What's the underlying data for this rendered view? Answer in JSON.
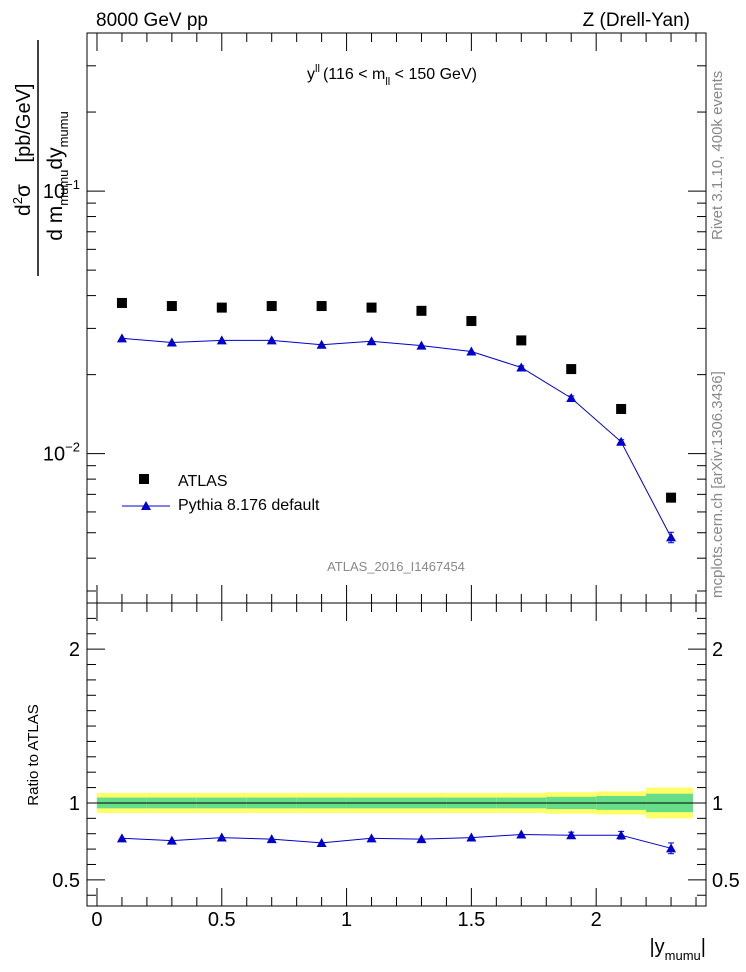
{
  "header": {
    "left_title": "8000 GeV pp",
    "right_title": "Z (Drell-Yan)"
  },
  "side_labels": {
    "rivet": "Rivet 3.1.10,  400k events",
    "mcplots": "mcplots.cern.ch [arXiv:1306.3436]"
  },
  "analysis_id": "ATLAS_2016_I1467454",
  "chart_data": [
    {
      "type": "scatter",
      "panel": "main",
      "title": "y^ll (116 < m_ll < 150 GeV)",
      "title_parts": {
        "y": "y",
        "y_sup": "ll",
        "pre": "(116 < m",
        "m_sub": "ll",
        "post": " < 150 GeV)"
      },
      "ylabel": "d²σ / d m_mumu dy_mumu [pb/GeV]",
      "ylabel_parts": {
        "num": "d",
        "num_sup": "2",
        "num_tail": "σ",
        "den_a": "d m",
        "den_a_sub": "mumu",
        "den_b": "dy",
        "den_b_sub": "mumu",
        "unit": "[pb/GeV]"
      },
      "yscale": "log",
      "ylim": [
        0.0027,
        0.4
      ],
      "xlim": [
        -0.04,
        2.44
      ],
      "y_tick_labels": [
        {
          "value": 0.1,
          "base": "10",
          "exp": "−1"
        },
        {
          "value": 0.01,
          "base": "10",
          "exp": "−2"
        }
      ],
      "legend_position": "lower-left",
      "series": [
        {
          "name": "ATLAS",
          "marker": "square",
          "color": "#000000",
          "x": [
            0.1,
            0.3,
            0.5,
            0.7,
            0.9,
            1.1,
            1.3,
            1.5,
            1.7,
            1.9,
            2.1,
            2.3
          ],
          "y": [
            0.0375,
            0.0365,
            0.036,
            0.0365,
            0.0365,
            0.036,
            0.035,
            0.032,
            0.027,
            0.021,
            0.0148,
            0.0068
          ]
        },
        {
          "name": "Pythia 8.176 default",
          "marker": "triangle",
          "color": "#0000cc",
          "x": [
            0.1,
            0.3,
            0.5,
            0.7,
            0.9,
            1.1,
            1.3,
            1.5,
            1.7,
            1.9,
            2.1,
            2.3
          ],
          "y": [
            0.0275,
            0.0265,
            0.027,
            0.027,
            0.026,
            0.0268,
            0.0258,
            0.0245,
            0.0213,
            0.0163,
            0.0111,
            0.0048
          ],
          "err": [
            0.0003,
            0.0003,
            0.0003,
            0.0003,
            0.0003,
            0.0003,
            0.0003,
            0.0003,
            0.0003,
            0.0003,
            0.0002,
            0.00022
          ]
        }
      ]
    },
    {
      "type": "line",
      "panel": "ratio",
      "ylabel": "Ratio to ATLAS",
      "xlabel": "|y_mumu|",
      "xlabel_parts": {
        "main": "|y",
        "sub": "mumu",
        "tail": "|"
      },
      "ylim": [
        0.33,
        2.3
      ],
      "xlim": [
        -0.04,
        2.44
      ],
      "x_ticks": [
        0,
        0.5,
        1,
        1.5,
        2
      ],
      "x_tick_labels": [
        "0",
        "0.5",
        "1",
        "1.5",
        "2"
      ],
      "y_ticks": [
        0.5,
        1,
        2
      ],
      "y_tick_labels": [
        "0.5",
        "1",
        "2"
      ],
      "band_colors": {
        "outer": "#ffff66",
        "inner": "#66dd88"
      },
      "bands": {
        "edges": [
          0.0,
          0.2,
          0.4,
          0.6,
          0.8,
          1.0,
          1.2,
          1.4,
          1.6,
          1.8,
          2.0,
          2.2,
          2.4
        ],
        "outer": [
          0.065,
          0.065,
          0.065,
          0.065,
          0.065,
          0.065,
          0.065,
          0.065,
          0.065,
          0.07,
          0.075,
          0.1
        ],
        "inner": [
          0.035,
          0.035,
          0.035,
          0.035,
          0.035,
          0.035,
          0.035,
          0.035,
          0.035,
          0.04,
          0.045,
          0.06
        ]
      },
      "series": [
        {
          "name": "Pythia 8.176 default",
          "color": "#0000cc",
          "x": [
            0.1,
            0.3,
            0.5,
            0.7,
            0.9,
            1.1,
            1.3,
            1.5,
            1.7,
            1.9,
            2.1,
            2.3
          ],
          "y": [
            0.77,
            0.755,
            0.775,
            0.765,
            0.74,
            0.77,
            0.765,
            0.775,
            0.795,
            0.79,
            0.79,
            0.705
          ],
          "err": [
            0.008,
            0.008,
            0.008,
            0.008,
            0.008,
            0.008,
            0.008,
            0.008,
            0.012,
            0.02,
            0.025,
            0.035
          ]
        }
      ]
    }
  ]
}
